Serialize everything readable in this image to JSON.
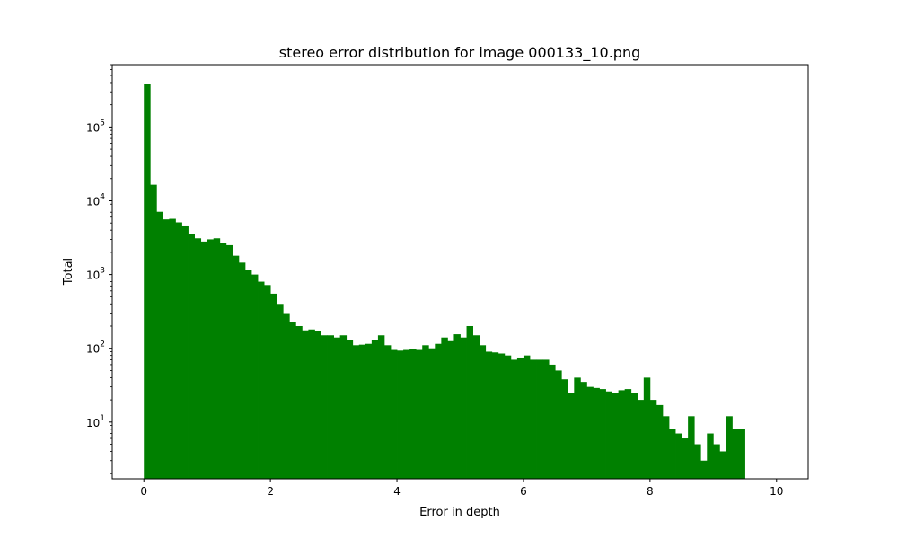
{
  "chart_data": {
    "type": "bar",
    "title": "stereo error distribution for image 000133_10.png",
    "xlabel": "Error in depth",
    "ylabel": "Total",
    "xlim": [
      -0.5,
      10.5
    ],
    "ylim": [
      1.7,
      700000
    ],
    "yscale": "log",
    "bin_start": 0,
    "bin_width": 0.1,
    "bar_color": "#008000",
    "grid": false,
    "legend": "none",
    "x_ticks": [
      {
        "value": 0,
        "label": "0"
      },
      {
        "value": 2,
        "label": "2"
      },
      {
        "value": 4,
        "label": "4"
      },
      {
        "value": 6,
        "label": "6"
      },
      {
        "value": 8,
        "label": "8"
      },
      {
        "value": 10,
        "label": "10"
      }
    ],
    "y_ticks": [
      {
        "value": 10,
        "base": "10",
        "exp": "1"
      },
      {
        "value": 100,
        "base": "10",
        "exp": "2"
      },
      {
        "value": 1000,
        "base": "10",
        "exp": "3"
      },
      {
        "value": 10000,
        "base": "10",
        "exp": "4"
      },
      {
        "value": 100000,
        "base": "10",
        "exp": "5"
      }
    ],
    "values": [
      380000,
      16500,
      7100,
      5600,
      5700,
      5100,
      4500,
      3500,
      3100,
      2800,
      3000,
      3100,
      2700,
      2500,
      1800,
      1450,
      1150,
      1000,
      800,
      720,
      550,
      400,
      300,
      230,
      200,
      175,
      180,
      170,
      150,
      150,
      140,
      150,
      130,
      110,
      112,
      115,
      130,
      150,
      110,
      95,
      93,
      95,
      97,
      95,
      110,
      100,
      115,
      140,
      125,
      155,
      140,
      200,
      150,
      110,
      90,
      88,
      85,
      80,
      70,
      75,
      80,
      70,
      70,
      70,
      60,
      50,
      38,
      25,
      40,
      35,
      30,
      29,
      28,
      26,
      25,
      27,
      28,
      25,
      20,
      40,
      20,
      17,
      12,
      8,
      7,
      6,
      12,
      5,
      3,
      7,
      5,
      4,
      12,
      8,
      8
    ]
  }
}
